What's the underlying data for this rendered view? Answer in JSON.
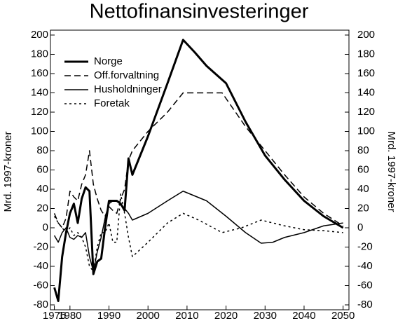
{
  "chart_data": {
    "type": "line",
    "title": "Nettofinansinvesteringer",
    "ylabel": "Mrd. 1997-kroner",
    "y2label": "Mrd. 1997-kroner",
    "xlim": [
      1975,
      2051.5
    ],
    "xticks": [
      1976,
      1980,
      1990,
      2000,
      2010,
      2020,
      2030,
      2040,
      2050
    ],
    "ylim": [
      -80,
      200
    ],
    "yticks": [
      -80,
      -60,
      -40,
      -20,
      0,
      20,
      40,
      60,
      80,
      100,
      120,
      140,
      160,
      180,
      200
    ],
    "y2lim": [
      -80,
      200
    ],
    "y2ticks": [
      -80,
      -60,
      -40,
      -20,
      0,
      20,
      40,
      60,
      80,
      100,
      120,
      140,
      160,
      180,
      200
    ],
    "legend": "upper left",
    "series": [
      {
        "name": "Norge",
        "color": "#000000",
        "width": 3,
        "dash": "none",
        "x": [
          1976,
          1977,
          1978,
          1979,
          1980,
          1981,
          1982,
          1983,
          1984,
          1985,
          1986,
          1987,
          1988,
          1989,
          1990,
          1991,
          1992,
          1993,
          1994,
          1995,
          1996,
          2000,
          2005,
          2009,
          2012,
          2015,
          2020,
          2025,
          2030,
          2035,
          2040,
          2045,
          2050
        ],
        "values": [
          -62,
          -76,
          -30,
          -5,
          15,
          25,
          5,
          30,
          42,
          38,
          -48,
          -35,
          -32,
          0,
          28,
          28,
          28,
          25,
          18,
          72,
          55,
          95,
          150,
          195,
          182,
          168,
          150,
          110,
          75,
          50,
          28,
          12,
          0
        ]
      },
      {
        "name": "Off.forvaltning",
        "color": "#000000",
        "width": 1.5,
        "dash": "9,5",
        "x": [
          1976,
          1977,
          1978,
          1979,
          1980,
          1981,
          1982,
          1983,
          1984,
          1985,
          1986,
          1987,
          1988,
          1989,
          1990,
          1991,
          1992,
          1993,
          1994,
          1995,
          1996,
          2000,
          2005,
          2009,
          2010,
          2015,
          2019,
          2025,
          2030,
          2035,
          2040,
          2045,
          2050
        ],
        "values": [
          15,
          5,
          0,
          10,
          38,
          32,
          28,
          45,
          55,
          80,
          45,
          30,
          18,
          12,
          22,
          18,
          15,
          30,
          40,
          70,
          80,
          100,
          120,
          140,
          140,
          140,
          140,
          105,
          80,
          55,
          32,
          15,
          2
        ]
      },
      {
        "name": "Husholdninger",
        "color": "#000000",
        "width": 1.5,
        "dash": "none",
        "x": [
          1976,
          1977,
          1978,
          1979,
          1980,
          1981,
          1982,
          1983,
          1984,
          1985,
          1986,
          1987,
          1988,
          1989,
          1990,
          1991,
          1992,
          1993,
          1994,
          1995,
          1996,
          2000,
          2005,
          2009,
          2015,
          2020,
          2025,
          2029,
          2032,
          2035,
          2040,
          2045,
          2050
        ],
        "values": [
          -8,
          -15,
          -5,
          0,
          -10,
          -12,
          -8,
          -10,
          -5,
          -30,
          -45,
          -25,
          -10,
          10,
          25,
          28,
          28,
          25,
          20,
          15,
          8,
          15,
          28,
          38,
          28,
          12,
          -5,
          -16,
          -15,
          -10,
          -5,
          2,
          5
        ]
      },
      {
        "name": "Foretak",
        "color": "#000000",
        "width": 1.5,
        "dash": "3,4",
        "x": [
          1976,
          1977,
          1978,
          1979,
          1980,
          1981,
          1982,
          1983,
          1984,
          1985,
          1986,
          1987,
          1988,
          1989,
          1990,
          1991,
          1992,
          1993,
          1994,
          1995,
          1996,
          2000,
          2005,
          2009,
          2013,
          2019,
          2024,
          2029,
          2035,
          2040,
          2045,
          2050
        ],
        "values": [
          12,
          5,
          0,
          -5,
          0,
          -8,
          -5,
          -10,
          -20,
          -40,
          -45,
          -20,
          -5,
          -5,
          5,
          -15,
          -15,
          35,
          15,
          -10,
          -30,
          -15,
          5,
          15,
          8,
          -5,
          0,
          8,
          2,
          -2,
          -3,
          -5
        ]
      }
    ]
  }
}
